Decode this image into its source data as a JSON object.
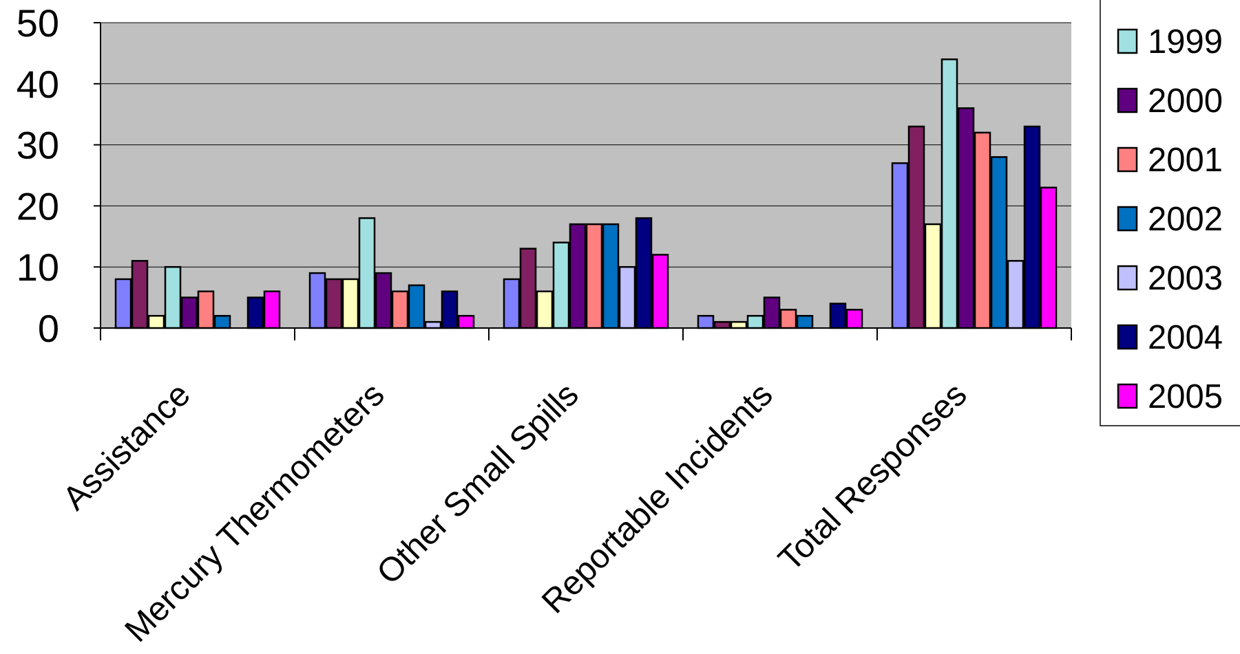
{
  "chart_data": {
    "type": "bar",
    "title": "",
    "xlabel": "",
    "ylabel": "",
    "ylim": [
      0,
      50
    ],
    "yticks": [
      0,
      10,
      20,
      30,
      40,
      50
    ],
    "grid": true,
    "plot_background": "#C0C0C0",
    "legend_position": "right",
    "categories": [
      "Assistance",
      "Mercury Thermometers",
      "Other Small Spills",
      "Reportable Incidents",
      "Total Responses"
    ],
    "bar_series": [
      {
        "color": "#8080FF",
        "values": [
          8,
          9,
          8,
          2,
          27
        ]
      },
      {
        "color": "#802060",
        "values": [
          11,
          8,
          13,
          1,
          33
        ]
      },
      {
        "color": "#FFFFC0",
        "values": [
          2,
          8,
          6,
          1,
          17
        ]
      },
      {
        "name": "1999",
        "color": "#A0E0E0",
        "values": [
          10,
          18,
          14,
          2,
          44
        ]
      },
      {
        "name": "2000",
        "color": "#600080",
        "values": [
          5,
          9,
          17,
          5,
          36
        ]
      },
      {
        "name": "2001",
        "color": "#FF8080",
        "values": [
          6,
          6,
          17,
          3,
          32
        ]
      },
      {
        "name": "2002",
        "color": "#0070C0",
        "values": [
          2,
          7,
          17,
          2,
          28
        ]
      },
      {
        "name": "2003",
        "color": "#C0C0FF",
        "values": [
          0,
          1,
          10,
          0,
          11
        ]
      },
      {
        "name": "2004",
        "color": "#000080",
        "values": [
          5,
          6,
          18,
          4,
          33
        ]
      },
      {
        "name": "2005",
        "color": "#FF00FF",
        "values": [
          6,
          2,
          12,
          3,
          23
        ]
      }
    ],
    "legend": [
      {
        "name": "1999",
        "color": "#A0E0E0"
      },
      {
        "name": "2000",
        "color": "#600080"
      },
      {
        "name": "2001",
        "color": "#FF8080"
      },
      {
        "name": "2002",
        "color": "#0070C0"
      },
      {
        "name": "2003",
        "color": "#C0C0FF"
      },
      {
        "name": "2004",
        "color": "#000080"
      },
      {
        "name": "2005",
        "color": "#FF00FF"
      }
    ]
  }
}
